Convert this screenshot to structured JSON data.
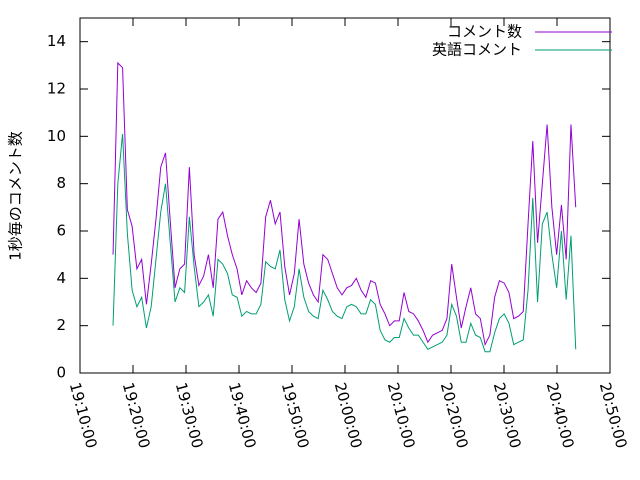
{
  "chart_data": {
    "type": "line",
    "ylabel": "1秒毎のコメント数",
    "x": [
      "19:16:14",
      "19:17:08",
      "19:18:02",
      "19:18:56",
      "19:19:50",
      "19:20:44",
      "19:21:38",
      "19:22:32",
      "19:23:26",
      "19:24:20",
      "19:25:14",
      "19:26:08",
      "19:27:02",
      "19:27:56",
      "19:28:50",
      "19:29:44",
      "19:30:38",
      "19:31:32",
      "19:32:26",
      "19:33:20",
      "19:34:14",
      "19:35:08",
      "19:36:02",
      "19:36:56",
      "19:37:50",
      "19:38:44",
      "19:39:38",
      "19:40:32",
      "19:41:26",
      "19:42:20",
      "19:43:14",
      "19:44:08",
      "19:45:02",
      "19:45:56",
      "19:46:50",
      "19:47:44",
      "19:48:38",
      "19:49:32",
      "19:50:26",
      "19:51:20",
      "19:52:14",
      "19:53:08",
      "19:54:02",
      "19:54:56",
      "19:55:50",
      "19:56:44",
      "19:57:38",
      "19:58:32",
      "19:59:26",
      "20:00:20",
      "20:01:14",
      "20:02:08",
      "20:03:02",
      "20:03:56",
      "20:04:50",
      "20:05:44",
      "20:06:38",
      "20:07:32",
      "20:08:26",
      "20:09:20",
      "20:10:14",
      "20:11:08",
      "20:12:02",
      "20:12:56",
      "20:13:50",
      "20:14:44",
      "20:15:38",
      "20:16:32",
      "20:17:26",
      "20:18:20",
      "20:19:14",
      "20:20:08",
      "20:21:02",
      "20:21:56",
      "20:22:50",
      "20:23:44",
      "20:24:38",
      "20:25:32",
      "20:26:26",
      "20:27:20",
      "20:28:14",
      "20:29:08",
      "20:30:02",
      "20:30:56",
      "20:31:50",
      "20:32:44",
      "20:33:38",
      "20:34:32",
      "20:35:26",
      "20:36:20",
      "20:37:14",
      "20:38:08",
      "20:39:02",
      "20:39:56",
      "20:40:50",
      "20:41:44",
      "20:42:38",
      "20:43:32"
    ],
    "series": [
      {
        "name": "コメント数",
        "color": "#9400d3",
        "values": [
          5.0,
          13.1,
          12.9,
          6.9,
          6.2,
          4.4,
          4.8,
          2.9,
          4.6,
          6.5,
          8.7,
          9.3,
          6.4,
          3.6,
          4.4,
          4.6,
          8.7,
          5.0,
          3.7,
          4.1,
          5.0,
          3.6,
          6.5,
          6.8,
          5.8,
          5.0,
          4.4,
          3.3,
          3.9,
          3.6,
          3.4,
          3.8,
          6.6,
          7.3,
          6.3,
          6.8,
          4.5,
          3.3,
          4.2,
          6.5,
          4.6,
          3.8,
          3.3,
          3.0,
          5.0,
          4.8,
          4.2,
          3.6,
          3.3,
          3.6,
          3.7,
          4.0,
          3.5,
          3.2,
          3.9,
          3.8,
          2.9,
          2.5,
          2.0,
          2.2,
          2.2,
          3.4,
          2.6,
          2.5,
          2.2,
          1.8,
          1.3,
          1.6,
          1.7,
          1.8,
          2.3,
          4.6,
          3.2,
          1.9,
          2.8,
          3.6,
          2.5,
          2.3,
          1.2,
          1.6,
          3.2,
          3.9,
          3.8,
          3.4,
          2.3,
          2.4,
          2.6,
          6.3,
          9.8,
          5.5,
          8.0,
          10.5,
          7.0,
          5.0,
          7.1,
          4.8,
          10.5,
          7.0
        ]
      },
      {
        "name": "英語コメント",
        "color": "#009e73",
        "values": [
          2.0,
          8.0,
          10.1,
          5.9,
          3.5,
          2.8,
          3.2,
          1.9,
          2.8,
          4.8,
          6.8,
          8.0,
          5.5,
          3.0,
          3.6,
          3.4,
          6.6,
          4.5,
          2.8,
          3.0,
          3.3,
          2.4,
          4.8,
          4.6,
          4.2,
          3.3,
          3.2,
          2.4,
          2.6,
          2.5,
          2.5,
          2.9,
          4.7,
          4.5,
          4.4,
          5.2,
          3.1,
          2.2,
          2.8,
          4.4,
          3.2,
          2.6,
          2.4,
          2.3,
          3.5,
          3.1,
          2.6,
          2.4,
          2.3,
          2.8,
          2.9,
          2.8,
          2.5,
          2.5,
          3.1,
          2.9,
          1.8,
          1.4,
          1.3,
          1.5,
          1.5,
          2.3,
          1.9,
          1.6,
          1.6,
          1.3,
          1.0,
          1.1,
          1.2,
          1.3,
          1.6,
          2.9,
          2.4,
          1.3,
          1.3,
          2.1,
          1.6,
          1.5,
          0.9,
          0.9,
          1.7,
          2.3,
          2.5,
          2.1,
          1.2,
          1.3,
          1.4,
          3.5,
          7.4,
          3.0,
          6.3,
          6.8,
          5.0,
          3.6,
          6.0,
          3.1,
          5.8,
          1.0
        ]
      }
    ],
    "xlim": [
      "19:10:00",
      "20:50:00"
    ],
    "xticks": [
      "19:10:00",
      "19:20:00",
      "19:30:00",
      "19:40:00",
      "19:50:00",
      "20:00:00",
      "20:10:00",
      "20:20:00",
      "20:30:00",
      "20:40:00",
      "20:50:00"
    ],
    "ylim": [
      0,
      15
    ],
    "yticks": [
      0,
      2,
      4,
      6,
      8,
      10,
      12,
      14
    ],
    "grid": false,
    "legend": "top-right"
  }
}
